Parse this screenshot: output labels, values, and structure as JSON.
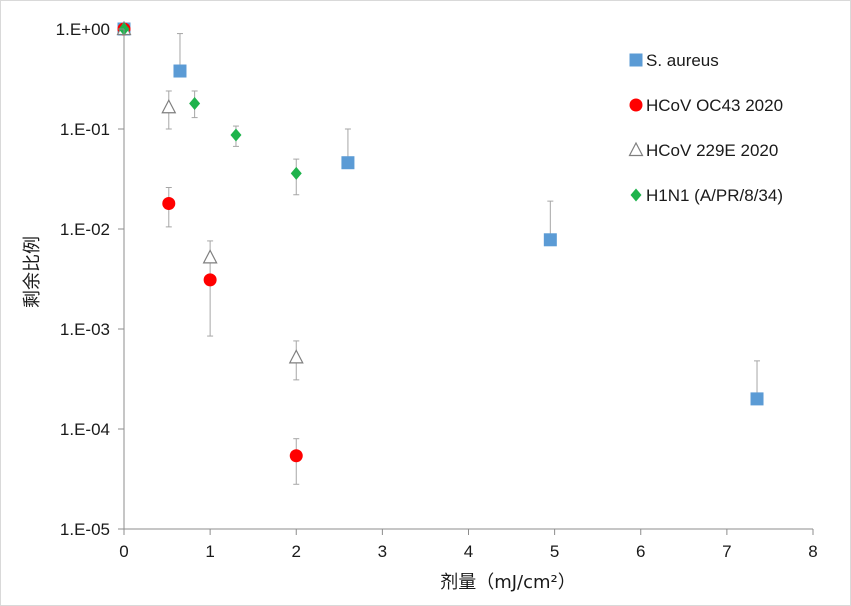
{
  "chart_data": {
    "type": "scatter",
    "title": "",
    "xlabel": "剂量（mJ/cm²）",
    "ylabel": "剩余比例",
    "x_ticks": [
      "0",
      "1",
      "2",
      "3",
      "4",
      "5",
      "6",
      "7",
      "8"
    ],
    "y_ticks": [
      "1.E-05",
      "1.E-04",
      "1.E-03",
      "1.E-02",
      "1.E-01",
      "1.E+00"
    ],
    "xlim": [
      0,
      8
    ],
    "ylim": [
      1e-05,
      1
    ],
    "y_scale": "log",
    "grid": false,
    "legend_position": "top-right",
    "series": [
      {
        "name": "S. aureus",
        "marker": "square",
        "color": "#5b9bd5",
        "points": [
          {
            "x": 0,
            "y": 1.0,
            "err_hi": null,
            "err_lo": null
          },
          {
            "x": 0.65,
            "y": 0.38,
            "err_hi": 0.9,
            "err_lo": null
          },
          {
            "x": 2.6,
            "y": 0.046,
            "err_hi": 0.1,
            "err_lo": null
          },
          {
            "x": 4.95,
            "y": 0.0078,
            "err_hi": 0.019,
            "err_lo": null
          },
          {
            "x": 7.35,
            "y": 0.0002,
            "err_hi": 0.00048,
            "err_lo": null
          }
        ]
      },
      {
        "name": "HCoV OC43 2020",
        "marker": "circle",
        "color": "#ff0000",
        "points": [
          {
            "x": 0,
            "y": 1.0,
            "err_hi": null,
            "err_lo": null
          },
          {
            "x": 0.52,
            "y": 0.018,
            "err_hi": 0.026,
            "err_lo": 0.0105
          },
          {
            "x": 1.0,
            "y": 0.0031,
            "err_hi": null,
            "err_lo": 0.00085
          },
          {
            "x": 2.0,
            "y": 5.4e-05,
            "err_hi": 8e-05,
            "err_lo": 2.8e-05
          }
        ]
      },
      {
        "name": "HCoV 229E 2020",
        "marker": "open-triangle",
        "color": "#7f7f7f",
        "points": [
          {
            "x": 0,
            "y": 1.0,
            "err_hi": null,
            "err_lo": null
          },
          {
            "x": 0.52,
            "y": 0.165,
            "err_hi": 0.24,
            "err_lo": 0.1
          },
          {
            "x": 1.0,
            "y": 0.0052,
            "err_hi": 0.0076,
            "err_lo": 0.0035
          },
          {
            "x": 2.0,
            "y": 0.00052,
            "err_hi": 0.00076,
            "err_lo": 0.00031
          }
        ]
      },
      {
        "name": "H1N1 (A/PR/8/34)",
        "marker": "diamond",
        "color": "#1eb34b",
        "points": [
          {
            "x": 0,
            "y": 1.0,
            "err_hi": null,
            "err_lo": null
          },
          {
            "x": 0.82,
            "y": 0.18,
            "err_hi": 0.24,
            "err_lo": 0.13
          },
          {
            "x": 1.3,
            "y": 0.087,
            "err_hi": 0.107,
            "err_lo": 0.067
          },
          {
            "x": 2.0,
            "y": 0.036,
            "err_hi": 0.05,
            "err_lo": 0.022
          }
        ]
      }
    ]
  }
}
